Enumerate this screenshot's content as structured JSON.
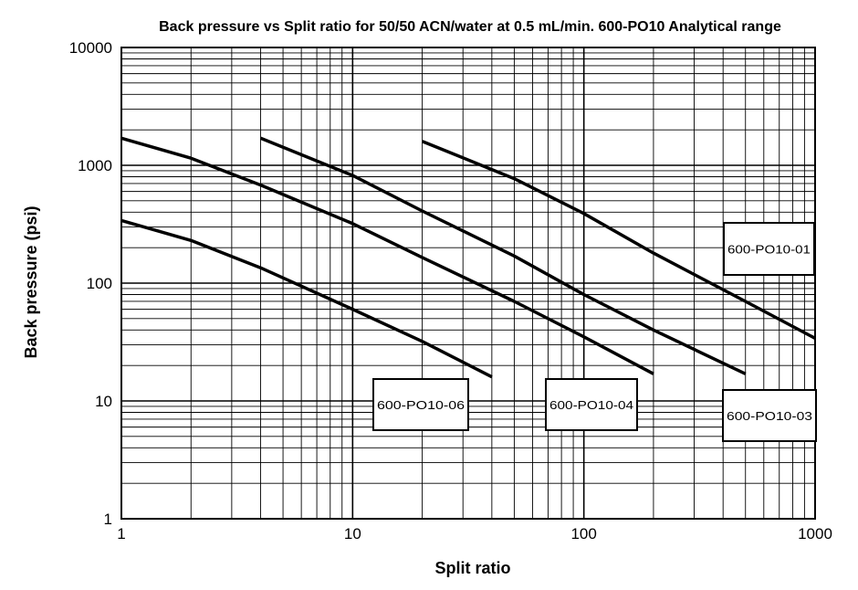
{
  "chart_data": {
    "type": "line",
    "title": "Back pressure vs Split ratio for 50/50 ACN/water at 0.5 mL/min. 600-PO10 Analytical range",
    "xlabel": "Split ratio",
    "ylabel": "Back pressure (psi)",
    "x_scale": "log",
    "y_scale": "log",
    "xlim": [
      1,
      1000
    ],
    "ylim": [
      1,
      10000
    ],
    "grid": true,
    "x_ticks": [
      "1",
      "10",
      "100",
      "1000"
    ],
    "y_ticks": [
      "1",
      "10",
      "100",
      "1000",
      "10000"
    ],
    "series": [
      {
        "name": "600-PO10-06",
        "x": [
          1,
          2,
          4,
          10,
          20,
          40
        ],
        "y": [
          340,
          230,
          135,
          60,
          32,
          16
        ]
      },
      {
        "name": "600-PO10-04",
        "x": [
          1,
          2,
          4,
          10,
          20,
          50,
          100,
          200
        ],
        "y": [
          1700,
          1150,
          680,
          320,
          165,
          70,
          35,
          17
        ]
      },
      {
        "name": "600-PO10-03",
        "x": [
          4,
          10,
          20,
          50,
          100,
          200,
          500
        ],
        "y": [
          1700,
          820,
          410,
          170,
          80,
          40,
          17
        ]
      },
      {
        "name": "600-PO10-01",
        "x": [
          20,
          50,
          100,
          200,
          500,
          1000
        ],
        "y": [
          1600,
          770,
          390,
          180,
          70,
          34
        ]
      }
    ]
  }
}
